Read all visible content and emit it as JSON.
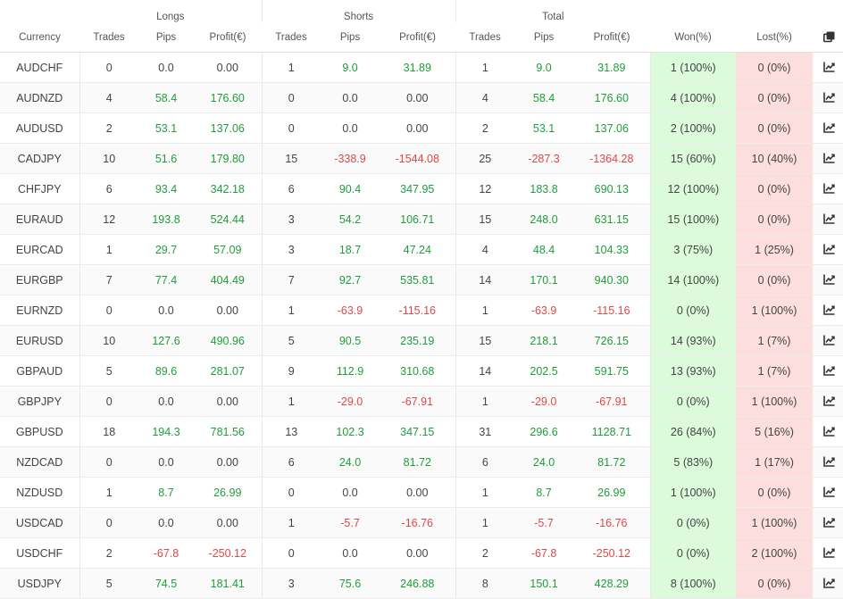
{
  "header": {
    "groups": {
      "longs": "Longs",
      "shorts": "Shorts",
      "total": "Total"
    },
    "columns": {
      "currency": "Currency",
      "trades": "Trades",
      "pips": "Pips",
      "profit": "Profit(€)",
      "won": "Won(%)",
      "lost": "Lost(%)"
    },
    "copy_icon": "copy-icon"
  },
  "row_icon": "chart-line-icon",
  "colors": {
    "positive": "#1e9e3a",
    "negative": "#e04848",
    "won_bg": "#dbfbdb",
    "lost_bg": "#fddede"
  },
  "rows": [
    {
      "currency": "AUDCHF",
      "l_trades": "0",
      "l_pips": "0.0",
      "l_profit": "0.00",
      "s_trades": "1",
      "s_pips": "9.0",
      "s_profit": "31.89",
      "t_trades": "1",
      "t_pips": "9.0",
      "t_profit": "31.89",
      "won": "1 (100%)",
      "lost": "0 (0%)"
    },
    {
      "currency": "AUDNZD",
      "l_trades": "4",
      "l_pips": "58.4",
      "l_profit": "176.60",
      "s_trades": "0",
      "s_pips": "0.0",
      "s_profit": "0.00",
      "t_trades": "4",
      "t_pips": "58.4",
      "t_profit": "176.60",
      "won": "4 (100%)",
      "lost": "0 (0%)"
    },
    {
      "currency": "AUDUSD",
      "l_trades": "2",
      "l_pips": "53.1",
      "l_profit": "137.06",
      "s_trades": "0",
      "s_pips": "0.0",
      "s_profit": "0.00",
      "t_trades": "2",
      "t_pips": "53.1",
      "t_profit": "137.06",
      "won": "2 (100%)",
      "lost": "0 (0%)"
    },
    {
      "currency": "CADJPY",
      "l_trades": "10",
      "l_pips": "51.6",
      "l_profit": "179.80",
      "s_trades": "15",
      "s_pips": "-338.9",
      "s_profit": "-1544.08",
      "t_trades": "25",
      "t_pips": "-287.3",
      "t_profit": "-1364.28",
      "won": "15 (60%)",
      "lost": "10 (40%)"
    },
    {
      "currency": "CHFJPY",
      "l_trades": "6",
      "l_pips": "93.4",
      "l_profit": "342.18",
      "s_trades": "6",
      "s_pips": "90.4",
      "s_profit": "347.95",
      "t_trades": "12",
      "t_pips": "183.8",
      "t_profit": "690.13",
      "won": "12 (100%)",
      "lost": "0 (0%)"
    },
    {
      "currency": "EURAUD",
      "l_trades": "12",
      "l_pips": "193.8",
      "l_profit": "524.44",
      "s_trades": "3",
      "s_pips": "54.2",
      "s_profit": "106.71",
      "t_trades": "15",
      "t_pips": "248.0",
      "t_profit": "631.15",
      "won": "15 (100%)",
      "lost": "0 (0%)"
    },
    {
      "currency": "EURCAD",
      "l_trades": "1",
      "l_pips": "29.7",
      "l_profit": "57.09",
      "s_trades": "3",
      "s_pips": "18.7",
      "s_profit": "47.24",
      "t_trades": "4",
      "t_pips": "48.4",
      "t_profit": "104.33",
      "won": "3 (75%)",
      "lost": "1 (25%)"
    },
    {
      "currency": "EURGBP",
      "l_trades": "7",
      "l_pips": "77.4",
      "l_profit": "404.49",
      "s_trades": "7",
      "s_pips": "92.7",
      "s_profit": "535.81",
      "t_trades": "14",
      "t_pips": "170.1",
      "t_profit": "940.30",
      "won": "14 (100%)",
      "lost": "0 (0%)"
    },
    {
      "currency": "EURNZD",
      "l_trades": "0",
      "l_pips": "0.0",
      "l_profit": "0.00",
      "s_trades": "1",
      "s_pips": "-63.9",
      "s_profit": "-115.16",
      "t_trades": "1",
      "t_pips": "-63.9",
      "t_profit": "-115.16",
      "won": "0 (0%)",
      "lost": "1 (100%)"
    },
    {
      "currency": "EURUSD",
      "l_trades": "10",
      "l_pips": "127.6",
      "l_profit": "490.96",
      "s_trades": "5",
      "s_pips": "90.5",
      "s_profit": "235.19",
      "t_trades": "15",
      "t_pips": "218.1",
      "t_profit": "726.15",
      "won": "14 (93%)",
      "lost": "1 (7%)"
    },
    {
      "currency": "GBPAUD",
      "l_trades": "5",
      "l_pips": "89.6",
      "l_profit": "281.07",
      "s_trades": "9",
      "s_pips": "112.9",
      "s_profit": "310.68",
      "t_trades": "14",
      "t_pips": "202.5",
      "t_profit": "591.75",
      "won": "13 (93%)",
      "lost": "1 (7%)"
    },
    {
      "currency": "GBPJPY",
      "l_trades": "0",
      "l_pips": "0.0",
      "l_profit": "0.00",
      "s_trades": "1",
      "s_pips": "-29.0",
      "s_profit": "-67.91",
      "t_trades": "1",
      "t_pips": "-29.0",
      "t_profit": "-67.91",
      "won": "0 (0%)",
      "lost": "1 (100%)"
    },
    {
      "currency": "GBPUSD",
      "l_trades": "18",
      "l_pips": "194.3",
      "l_profit": "781.56",
      "s_trades": "13",
      "s_pips": "102.3",
      "s_profit": "347.15",
      "t_trades": "31",
      "t_pips": "296.6",
      "t_profit": "1128.71",
      "won": "26 (84%)",
      "lost": "5 (16%)"
    },
    {
      "currency": "NZDCAD",
      "l_trades": "0",
      "l_pips": "0.0",
      "l_profit": "0.00",
      "s_trades": "6",
      "s_pips": "24.0",
      "s_profit": "81.72",
      "t_trades": "6",
      "t_pips": "24.0",
      "t_profit": "81.72",
      "won": "5 (83%)",
      "lost": "1 (17%)"
    },
    {
      "currency": "NZDUSD",
      "l_trades": "1",
      "l_pips": "8.7",
      "l_profit": "26.99",
      "s_trades": "0",
      "s_pips": "0.0",
      "s_profit": "0.00",
      "t_trades": "1",
      "t_pips": "8.7",
      "t_profit": "26.99",
      "won": "1 (100%)",
      "lost": "0 (0%)"
    },
    {
      "currency": "USDCAD",
      "l_trades": "0",
      "l_pips": "0.0",
      "l_profit": "0.00",
      "s_trades": "1",
      "s_pips": "-5.7",
      "s_profit": "-16.76",
      "t_trades": "1",
      "t_pips": "-5.7",
      "t_profit": "-16.76",
      "won": "0 (0%)",
      "lost": "1 (100%)"
    },
    {
      "currency": "USDCHF",
      "l_trades": "2",
      "l_pips": "-67.8",
      "l_profit": "-250.12",
      "s_trades": "0",
      "s_pips": "0.0",
      "s_profit": "0.00",
      "t_trades": "2",
      "t_pips": "-67.8",
      "t_profit": "-250.12",
      "won": "0 (0%)",
      "lost": "2 (100%)"
    },
    {
      "currency": "USDJPY",
      "l_trades": "5",
      "l_pips": "74.5",
      "l_profit": "181.41",
      "s_trades": "3",
      "s_pips": "75.6",
      "s_profit": "246.88",
      "t_trades": "8",
      "t_pips": "150.1",
      "t_profit": "428.29",
      "won": "8 (100%)",
      "lost": "0 (0%)"
    }
  ]
}
